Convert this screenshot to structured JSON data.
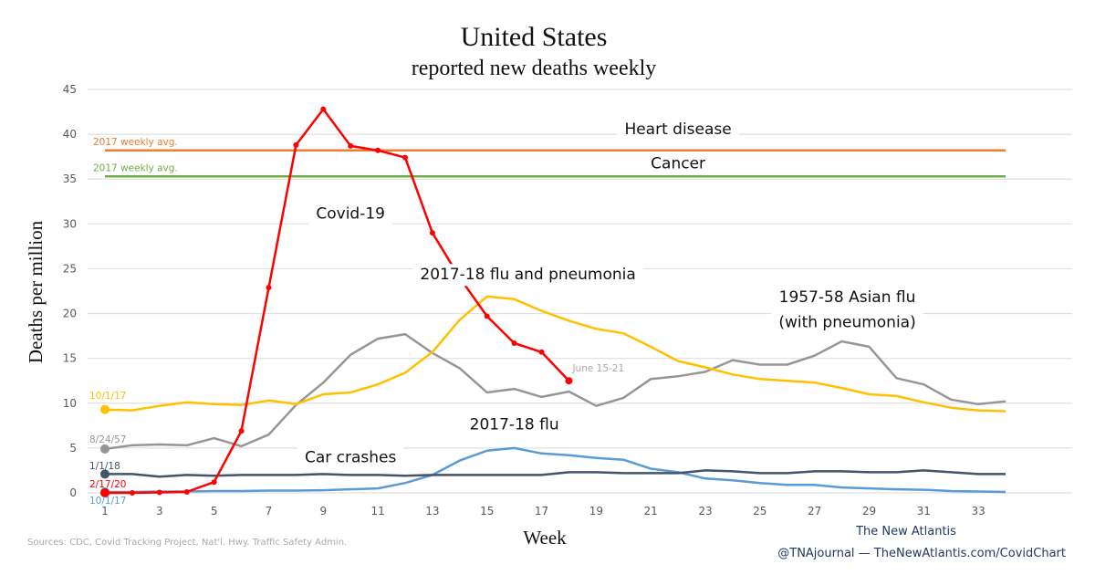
{
  "chart_data": {
    "type": "line",
    "title": "United States",
    "subtitle": "reported new deaths weekly",
    "xlabel": "Week",
    "ylabel": "Deaths per million",
    "xlim": [
      1,
      34
    ],
    "ylim": [
      0,
      45
    ],
    "x_ticks": [
      1,
      3,
      5,
      7,
      9,
      11,
      13,
      15,
      17,
      19,
      21,
      23,
      25,
      27,
      29,
      31,
      33
    ],
    "y_ticks": [
      0,
      5,
      10,
      15,
      20,
      25,
      30,
      35,
      40,
      45
    ],
    "grid": true,
    "reference_lines": [
      {
        "name": "Heart disease",
        "value": 38.2,
        "color": "#ED7D31",
        "label": "2017 weekly avg."
      },
      {
        "name": "Cancer",
        "value": 35.3,
        "color": "#70AD47",
        "label": "2017 weekly avg."
      }
    ],
    "series": [
      {
        "name": "Covid-19",
        "start_label": "2/17/20",
        "end_label": "June 15-21",
        "color": "#FF0000",
        "markers": true,
        "x": [
          1,
          2,
          3,
          4,
          5,
          6,
          7,
          8,
          9,
          10,
          11,
          12,
          13,
          14,
          15,
          16,
          17,
          18
        ],
        "values": [
          0,
          0,
          0.05,
          0.1,
          1.2,
          6.9,
          22.9,
          38.8,
          42.8,
          38.7,
          38.2,
          37.4,
          29.0,
          24.0,
          19.7,
          16.7,
          15.7,
          12.5
        ]
      },
      {
        "name": "2017-18 flu and pneumonia",
        "start_label": "10/1/17",
        "color": "#FFC000",
        "markers": false,
        "x": [
          1,
          2,
          3,
          4,
          5,
          6,
          7,
          8,
          9,
          10,
          11,
          12,
          13,
          14,
          15,
          16,
          17,
          18,
          19,
          20,
          21,
          22,
          23,
          24,
          25,
          26,
          27,
          28,
          29,
          30,
          31,
          32,
          33,
          34
        ],
        "values": [
          9.3,
          9.2,
          9.7,
          10.1,
          9.9,
          9.8,
          10.3,
          9.9,
          11.0,
          11.2,
          12.1,
          13.4,
          15.7,
          19.3,
          21.9,
          21.6,
          20.3,
          19.2,
          18.3,
          17.8,
          16.3,
          14.7,
          14.0,
          13.2,
          12.7,
          12.5,
          12.3,
          11.7,
          11.0,
          10.8,
          10.1,
          9.5,
          9.2,
          9.1
        ]
      },
      {
        "name": "1957-58 Asian flu (with pneumonia)",
        "start_label": "8/24/57",
        "color": "#969696",
        "markers": false,
        "x": [
          1,
          2,
          3,
          4,
          5,
          6,
          7,
          8,
          9,
          10,
          11,
          12,
          13,
          14,
          15,
          16,
          17,
          18,
          19,
          20,
          21,
          22,
          23,
          24,
          25,
          26,
          27,
          28,
          29,
          30,
          31,
          32,
          33,
          34
        ],
        "values": [
          4.9,
          5.3,
          5.4,
          5.3,
          6.1,
          5.2,
          6.5,
          9.8,
          12.3,
          15.4,
          17.2,
          17.7,
          15.6,
          13.9,
          11.2,
          11.6,
          10.7,
          11.3,
          9.7,
          10.6,
          12.7,
          13.0,
          13.5,
          14.8,
          14.3,
          14.3,
          15.3,
          16.9,
          16.3,
          12.8,
          12.1,
          10.4,
          9.9,
          10.2
        ]
      },
      {
        "name": "Car crashes",
        "start_label": "1/1/18",
        "color": "#44546A",
        "markers": false,
        "x": [
          1,
          2,
          3,
          4,
          5,
          6,
          7,
          8,
          9,
          10,
          11,
          12,
          13,
          14,
          15,
          16,
          17,
          18,
          19,
          20,
          21,
          22,
          23,
          24,
          25,
          26,
          27,
          28,
          29,
          30,
          31,
          32,
          33,
          34
        ],
        "values": [
          2.1,
          2.1,
          1.8,
          2.0,
          1.9,
          2.0,
          2.0,
          2.0,
          2.1,
          2.0,
          2.0,
          1.9,
          2.0,
          2.0,
          2.0,
          2.0,
          2.0,
          2.3,
          2.3,
          2.2,
          2.2,
          2.2,
          2.5,
          2.4,
          2.2,
          2.2,
          2.4,
          2.4,
          2.3,
          2.3,
          2.5,
          2.3,
          2.1,
          2.1
        ]
      },
      {
        "name": "2017-18 flu",
        "start_label": "10/1/17",
        "color": "#5B9BD5",
        "markers": false,
        "x": [
          1,
          2,
          3,
          4,
          5,
          6,
          7,
          8,
          9,
          10,
          11,
          12,
          13,
          14,
          15,
          16,
          17,
          18,
          19,
          20,
          21,
          22,
          23,
          24,
          25,
          26,
          27,
          28,
          29,
          30,
          31,
          32,
          33,
          34
        ],
        "values": [
          0.1,
          0.1,
          0.15,
          0.15,
          0.2,
          0.2,
          0.25,
          0.25,
          0.3,
          0.4,
          0.5,
          1.1,
          2.0,
          3.6,
          4.7,
          5.0,
          4.4,
          4.2,
          3.9,
          3.7,
          2.7,
          2.3,
          1.6,
          1.4,
          1.1,
          0.9,
          0.9,
          0.6,
          0.5,
          0.4,
          0.35,
          0.2,
          0.15,
          0.1
        ]
      }
    ],
    "annotations": [
      {
        "text": "Heart disease",
        "x": 22,
        "y": 40.0
      },
      {
        "text": "Cancer",
        "x": 22,
        "y": 36.2
      },
      {
        "text": "Covid-19",
        "x": 10,
        "y": 30.6
      },
      {
        "text": "2017-18 flu and pneumonia",
        "x": 16.5,
        "y": 23.8
      },
      {
        "text": "1957-58 Asian flu",
        "x": 28.2,
        "y": 21.3
      },
      {
        "text": "(with pneumonia)",
        "x": 28.2,
        "y": 18.5
      },
      {
        "text": "2017-18 flu",
        "x": 16,
        "y": 7.1
      },
      {
        "text": "Car crashes",
        "x": 10,
        "y": 3.4
      }
    ],
    "source": "Sources: CDC, Covid Tracking Project, Nat'l. Hwy. Traffic Safety Admin.",
    "credit_line1": "The New Atlantis",
    "credit_line2": "@TNAjournal — TheNewAtlantis.com/CovidChart"
  }
}
